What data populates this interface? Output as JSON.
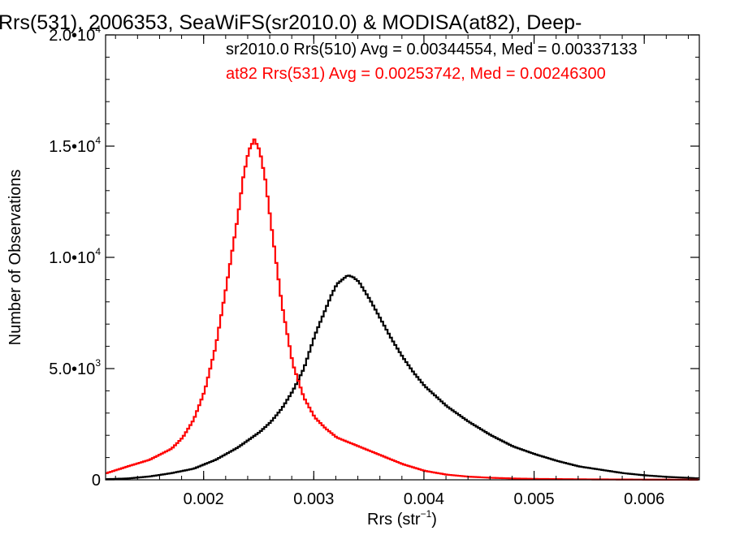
{
  "chart_data": {
    "type": "line",
    "title": "Rrs(531), 2006353, SeaWiFS(sr2010.0) & MODISA(at82), Deep-",
    "xlabel": "Rrs (str",
    "xlabel_sup": "−1",
    "xlabel_close": ")",
    "ylabel": "Number of Observations",
    "xlim": [
      0.00111,
      0.0065
    ],
    "ylim": [
      0,
      20000
    ],
    "x_ticks": [
      {
        "value": 0.002,
        "label": "0.002"
      },
      {
        "value": 0.003,
        "label": "0.003"
      },
      {
        "value": 0.004,
        "label": "0.004"
      },
      {
        "value": 0.005,
        "label": "0.005"
      },
      {
        "value": 0.006,
        "label": "0.006"
      }
    ],
    "y_ticks": [
      {
        "value": 0,
        "label": "0",
        "exp": ""
      },
      {
        "value": 5000,
        "label": "5.0•10",
        "exp": "3"
      },
      {
        "value": 10000,
        "label": "1.0•10",
        "exp": "4"
      },
      {
        "value": 15000,
        "label": "1.5•10",
        "exp": "4"
      },
      {
        "value": 20000,
        "label": "2.0•10",
        "exp": "4"
      }
    ],
    "grid": false,
    "series": [
      {
        "label": "sr2010.0 Rrs(510) Avg = 0.00344554, Med = 0.00337133",
        "color": "#000000",
        "x": [
          0.00111,
          0.0013,
          0.0015,
          0.0017,
          0.0019,
          0.0021,
          0.0023,
          0.0025,
          0.0026,
          0.0027,
          0.0028,
          0.0029,
          0.003,
          0.0031,
          0.00315,
          0.0032,
          0.00325,
          0.0033,
          0.00335,
          0.0034,
          0.0035,
          0.0036,
          0.0037,
          0.0038,
          0.0039,
          0.004,
          0.0042,
          0.0044,
          0.0046,
          0.0048,
          0.005,
          0.0052,
          0.0054,
          0.0056,
          0.0058,
          0.006,
          0.0062,
          0.0065
        ],
        "y": [
          30,
          60,
          150,
          300,
          500,
          900,
          1450,
          2150,
          2600,
          3200,
          4000,
          5000,
          6500,
          7700,
          8300,
          8800,
          9000,
          9200,
          9100,
          8900,
          8100,
          7200,
          6300,
          5500,
          4800,
          4200,
          3300,
          2600,
          2000,
          1500,
          1150,
          850,
          600,
          450,
          300,
          200,
          130,
          60
        ]
      },
      {
        "label": "at82 Rrs(531) Avg = 0.00253742, Med = 0.00246300",
        "color": "#ff0000",
        "x": [
          0.00111,
          0.0013,
          0.0015,
          0.0017,
          0.0018,
          0.0019,
          0.002,
          0.0021,
          0.0022,
          0.0023,
          0.00235,
          0.0024,
          0.00245,
          0.0025,
          0.00255,
          0.0026,
          0.0027,
          0.0028,
          0.0029,
          0.003,
          0.0031,
          0.0032,
          0.0033,
          0.0034,
          0.0036,
          0.0038,
          0.004,
          0.0042,
          0.0044,
          0.0046,
          0.0048,
          0.005,
          0.0055,
          0.006,
          0.0065
        ],
        "y": [
          300,
          600,
          900,
          1400,
          1900,
          2700,
          4000,
          6000,
          8800,
          11800,
          13600,
          14800,
          15300,
          14800,
          13500,
          11600,
          7900,
          5200,
          3700,
          2800,
          2300,
          1900,
          1700,
          1500,
          1100,
          700,
          400,
          230,
          140,
          90,
          60,
          40,
          20,
          10,
          5
        ]
      }
    ]
  }
}
